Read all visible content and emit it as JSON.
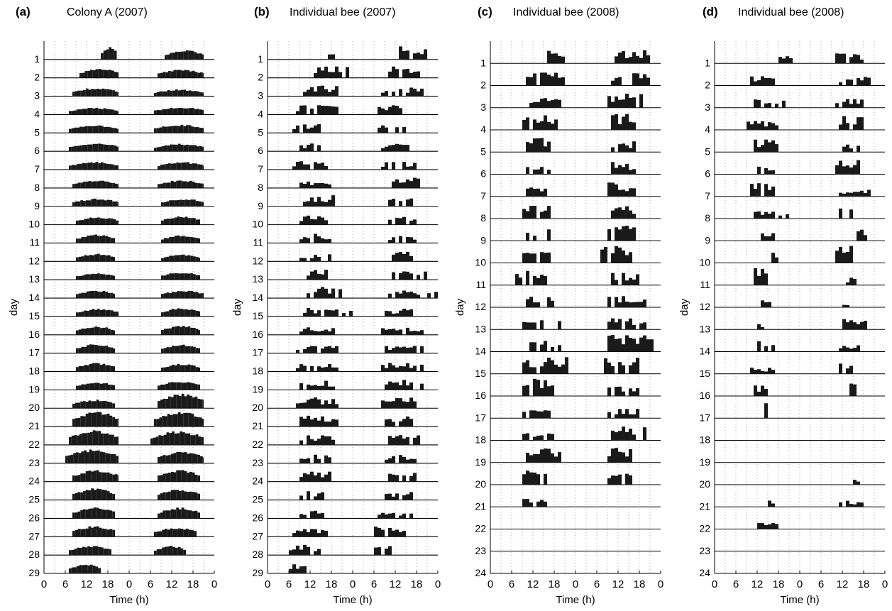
{
  "figure": {
    "panels": [
      {
        "letter": "(a)",
        "title": "Colony A (2007)"
      },
      {
        "letter": "(b)",
        "title": "Individual bee (2007)"
      },
      {
        "letter": "(c)",
        "title": "Individual bee (2008)"
      },
      {
        "letter": "(d)",
        "title": "Individual bee (2008)"
      }
    ]
  },
  "chart_data": [
    {
      "type": "bar",
      "title": "Colony A (2007)",
      "panel_letter": "(a)",
      "xlabel": "Time (h)",
      "ylabel": "day",
      "x_ticks": [
        "0",
        "6",
        "12",
        "18",
        "0",
        "6",
        "12",
        "18",
        "0"
      ],
      "xlim": [
        0,
        48
      ],
      "n_days": 29,
      "series": [
        {
          "day": 1,
          "onset": 16,
          "offset": 20.5,
          "peak": 0.8
        },
        {
          "day": 2,
          "onset": 10,
          "offset": 21,
          "peak": 0.6
        },
        {
          "day": 3,
          "onset": 8,
          "offset": 21,
          "peak": 0.55
        },
        {
          "day": 4,
          "onset": 7,
          "offset": 21,
          "peak": 0.45
        },
        {
          "day": 5,
          "onset": 7,
          "offset": 21,
          "peak": 0.5
        },
        {
          "day": 6,
          "onset": 7,
          "offset": 21,
          "peak": 0.55
        },
        {
          "day": 7,
          "onset": 7,
          "offset": 21,
          "peak": 0.5
        },
        {
          "day": 8,
          "onset": 8,
          "offset": 21,
          "peak": 0.5
        },
        {
          "day": 9,
          "onset": 8,
          "offset": 21,
          "peak": 0.5
        },
        {
          "day": 10,
          "onset": 9,
          "offset": 21,
          "peak": 0.5
        },
        {
          "day": 11,
          "onset": 9,
          "offset": 20,
          "peak": 0.55
        },
        {
          "day": 12,
          "onset": 9,
          "offset": 20,
          "peak": 0.5
        },
        {
          "day": 13,
          "onset": 9,
          "offset": 20,
          "peak": 0.45
        },
        {
          "day": 14,
          "onset": 9,
          "offset": 20,
          "peak": 0.5
        },
        {
          "day": 15,
          "onset": 9,
          "offset": 21,
          "peak": 0.5
        },
        {
          "day": 16,
          "onset": 9,
          "offset": 20,
          "peak": 0.55
        },
        {
          "day": 17,
          "onset": 9,
          "offset": 20,
          "peak": 0.6
        },
        {
          "day": 18,
          "onset": 9,
          "offset": 20,
          "peak": 0.55
        },
        {
          "day": 19,
          "onset": 9,
          "offset": 20,
          "peak": 0.5
        },
        {
          "day": 20,
          "onset": 8,
          "offset": 20,
          "peak": 0.55
        },
        {
          "day": 21,
          "onset": 8,
          "offset": 21,
          "peak": 0.95
        },
        {
          "day": 22,
          "onset": 7,
          "offset": 21,
          "peak": 0.95
        },
        {
          "day": 23,
          "onset": 6,
          "offset": 21,
          "peak": 0.9
        },
        {
          "day": 24,
          "onset": 8,
          "offset": 21,
          "peak": 0.75
        },
        {
          "day": 25,
          "onset": 8,
          "offset": 20,
          "peak": 0.75
        },
        {
          "day": 26,
          "onset": 8,
          "offset": 20,
          "peak": 0.7
        },
        {
          "day": 27,
          "onset": 8,
          "offset": 20,
          "peak": 0.7
        },
        {
          "day": 28,
          "onset": 7,
          "offset": 19,
          "peak": 0.6
        },
        {
          "day": 29,
          "onset": 7,
          "offset": 16,
          "peak": 0.6
        }
      ]
    },
    {
      "type": "bar",
      "title": "Individual bee (2007)",
      "panel_letter": "(b)",
      "xlabel": "Time (h)",
      "ylabel": "day",
      "x_ticks": [
        "0",
        "6",
        "12",
        "18",
        "0",
        "6",
        "12",
        "18",
        "0"
      ],
      "xlim": [
        0,
        48
      ],
      "n_days": 29,
      "series": [
        {
          "day": 1,
          "onset": 17,
          "offset": 19,
          "peak": 0.9
        },
        {
          "day": 2,
          "onset": 13,
          "offset": 23,
          "peak": 0.85
        },
        {
          "day": 3,
          "onset": 10,
          "offset": 20,
          "peak": 0.75
        },
        {
          "day": 4,
          "onset": 8,
          "offset": 20,
          "peak": 0.6
        },
        {
          "day": 5,
          "onset": 7,
          "offset": 15,
          "peak": 0.65
        },
        {
          "day": 6,
          "onset": 7,
          "offset": 15,
          "peak": 0.5
        },
        {
          "day": 7,
          "onset": 7,
          "offset": 17,
          "peak": 0.55
        },
        {
          "day": 8,
          "onset": 8,
          "offset": 18,
          "peak": 0.5
        },
        {
          "day": 9,
          "onset": 10,
          "offset": 19,
          "peak": 0.75
        },
        {
          "day": 10,
          "onset": 9,
          "offset": 18,
          "peak": 0.6
        },
        {
          "day": 11,
          "onset": 9,
          "offset": 18,
          "peak": 0.6
        },
        {
          "day": 12,
          "onset": 9,
          "offset": 18,
          "peak": 0.55
        },
        {
          "day": 13,
          "onset": 11,
          "offset": 17,
          "peak": 0.65
        },
        {
          "day": 14,
          "onset": 11,
          "offset": 21,
          "peak": 0.75
        },
        {
          "day": 15,
          "onset": 10,
          "offset": 24,
          "peak": 0.55
        },
        {
          "day": 16,
          "onset": 9,
          "offset": 19,
          "peak": 0.5
        },
        {
          "day": 17,
          "onset": 8,
          "offset": 20,
          "peak": 0.5
        },
        {
          "day": 18,
          "onset": 8,
          "offset": 20,
          "peak": 0.5
        },
        {
          "day": 19,
          "onset": 8,
          "offset": 20,
          "peak": 0.6
        },
        {
          "day": 20,
          "onset": 8,
          "offset": 20,
          "peak": 0.7
        },
        {
          "day": 21,
          "onset": 8,
          "offset": 20,
          "peak": 0.7
        },
        {
          "day": 22,
          "onset": 9,
          "offset": 19,
          "peak": 0.65
        },
        {
          "day": 23,
          "onset": 9,
          "offset": 19,
          "peak": 0.65
        },
        {
          "day": 24,
          "onset": 9,
          "offset": 18,
          "peak": 0.65
        },
        {
          "day": 25,
          "onset": 9,
          "offset": 18,
          "peak": 0.6
        },
        {
          "day": 26,
          "onset": 9,
          "offset": 17,
          "peak": 0.6
        },
        {
          "day": 27,
          "onset": 7,
          "offset": 17,
          "peak": 0.5
        },
        {
          "day": 28,
          "onset": 6,
          "offset": 15,
          "peak": 0.65
        },
        {
          "day": 29,
          "onset": 6,
          "offset": 11,
          "peak": 0.6
        }
      ]
    },
    {
      "type": "bar",
      "title": "Individual bee (2008)",
      "panel_letter": "(c)",
      "xlabel": "Time (h)",
      "ylabel": "day",
      "x_ticks": [
        "0",
        "6",
        "12",
        "18",
        "0",
        "6",
        "12",
        "18",
        "0"
      ],
      "xlim": [
        0,
        48
      ],
      "n_days": 24,
      "series": [
        {
          "day": 1,
          "onset": 15,
          "offset": 23,
          "peak": 0.8
        },
        {
          "day": 2,
          "onset": 10,
          "offset": 22,
          "peak": 0.75
        },
        {
          "day": 3,
          "onset": 10,
          "offset": 21,
          "peak": 0.7
        },
        {
          "day": 4,
          "onset": 9,
          "offset": 19,
          "peak": 0.85
        },
        {
          "day": 5,
          "onset": 10,
          "offset": 17,
          "peak": 0.85
        },
        {
          "day": 6,
          "onset": 10,
          "offset": 17,
          "peak": 0.6
        },
        {
          "day": 7,
          "onset": 10,
          "offset": 17,
          "peak": 0.65
        },
        {
          "day": 8,
          "onset": 9,
          "offset": 17,
          "peak": 0.8
        },
        {
          "day": 9,
          "onset": 10,
          "offset": 17,
          "peak": 0.65
        },
        {
          "day": 10,
          "onset": 9,
          "offset": 17,
          "peak": 0.8
        },
        {
          "day": 11,
          "onset": 7,
          "offset": 16,
          "peak": 0.9
        },
        {
          "day": 12,
          "onset": 10,
          "offset": 18,
          "peak": 0.65
        },
        {
          "day": 13,
          "onset": 9,
          "offset": 20,
          "peak": 0.6
        },
        {
          "day": 14,
          "onset": 9,
          "offset": 20,
          "peak": 0.6
        },
        {
          "day": 15,
          "onset": 9,
          "offset": 22,
          "peak": 0.9
        },
        {
          "day": 16,
          "onset": 8,
          "offset": 18,
          "peak": 0.95
        },
        {
          "day": 17,
          "onset": 9,
          "offset": 18,
          "peak": 0.5
        },
        {
          "day": 18,
          "onset": 9,
          "offset": 18,
          "peak": 0.5
        },
        {
          "day": 19,
          "onset": 10,
          "offset": 20,
          "peak": 0.75
        },
        {
          "day": 20,
          "onset": 9,
          "offset": 16,
          "peak": 0.8
        },
        {
          "day": 21,
          "onset": 9,
          "offset": 16,
          "peak": 0.6
        },
        {
          "day": 22,
          "onset": 0,
          "offset": 0,
          "peak": 0
        },
        {
          "day": 23,
          "onset": 0,
          "offset": 0,
          "peak": 0
        },
        {
          "day": 24,
          "onset": 0,
          "offset": 0,
          "peak": 0
        }
      ]
    },
    {
      "type": "bar",
      "title": "Individual bee (2008)",
      "panel_letter": "(d)",
      "xlabel": "Time (h)",
      "ylabel": "day",
      "x_ticks": [
        "0",
        "6",
        "12",
        "18",
        "0",
        "6",
        "12",
        "18",
        "0"
      ],
      "xlim": [
        0,
        48
      ],
      "n_days": 24,
      "series": [
        {
          "day": 1,
          "onset": 18,
          "offset": 22,
          "peak": 0.4
        },
        {
          "day": 2,
          "onset": 10,
          "offset": 18,
          "peak": 0.55
        },
        {
          "day": 3,
          "onset": 11,
          "offset": 20,
          "peak": 0.5
        },
        {
          "day": 4,
          "onset": 9,
          "offset": 18,
          "peak": 0.5
        },
        {
          "day": 5,
          "onset": 11,
          "offset": 18,
          "peak": 0.75
        },
        {
          "day": 6,
          "onset": 12,
          "offset": 17,
          "peak": 0.45
        },
        {
          "day": 7,
          "onset": 10,
          "offset": 17,
          "peak": 0.75
        },
        {
          "day": 8,
          "onset": 11,
          "offset": 21,
          "peak": 0.4
        },
        {
          "day": 9,
          "onset": 11,
          "offset": 17,
          "peak": 0.55
        },
        {
          "day": 10,
          "onset": 16,
          "offset": 19,
          "peak": 0.6
        },
        {
          "day": 11,
          "onset": 10,
          "offset": 15,
          "peak": 1.0
        },
        {
          "day": 12,
          "onset": 13,
          "offset": 16,
          "peak": 0.4
        },
        {
          "day": 13,
          "onset": 12,
          "offset": 14,
          "peak": 0.3
        },
        {
          "day": 14,
          "onset": 12,
          "offset": 19,
          "peak": 0.6
        },
        {
          "day": 15,
          "onset": 10,
          "offset": 18,
          "peak": 0.35
        },
        {
          "day": 16,
          "onset": 11,
          "offset": 15,
          "peak": 0.6
        },
        {
          "day": 17,
          "onset": 14,
          "offset": 16,
          "peak": 0.85
        },
        {
          "day": 18,
          "onset": 0,
          "offset": 0,
          "peak": 0
        },
        {
          "day": 19,
          "onset": 0,
          "offset": 0,
          "peak": 0
        },
        {
          "day": 20,
          "onset": 17,
          "offset": 18,
          "peak": 0.3
        },
        {
          "day": 21,
          "onset": 15,
          "offset": 17,
          "peak": 0.35
        },
        {
          "day": 22,
          "onset": 11,
          "offset": 18,
          "peak": 0.35
        },
        {
          "day": 23,
          "onset": 0,
          "offset": 0,
          "peak": 0
        },
        {
          "day": 24,
          "onset": 0,
          "offset": 0,
          "peak": 0
        }
      ]
    }
  ]
}
